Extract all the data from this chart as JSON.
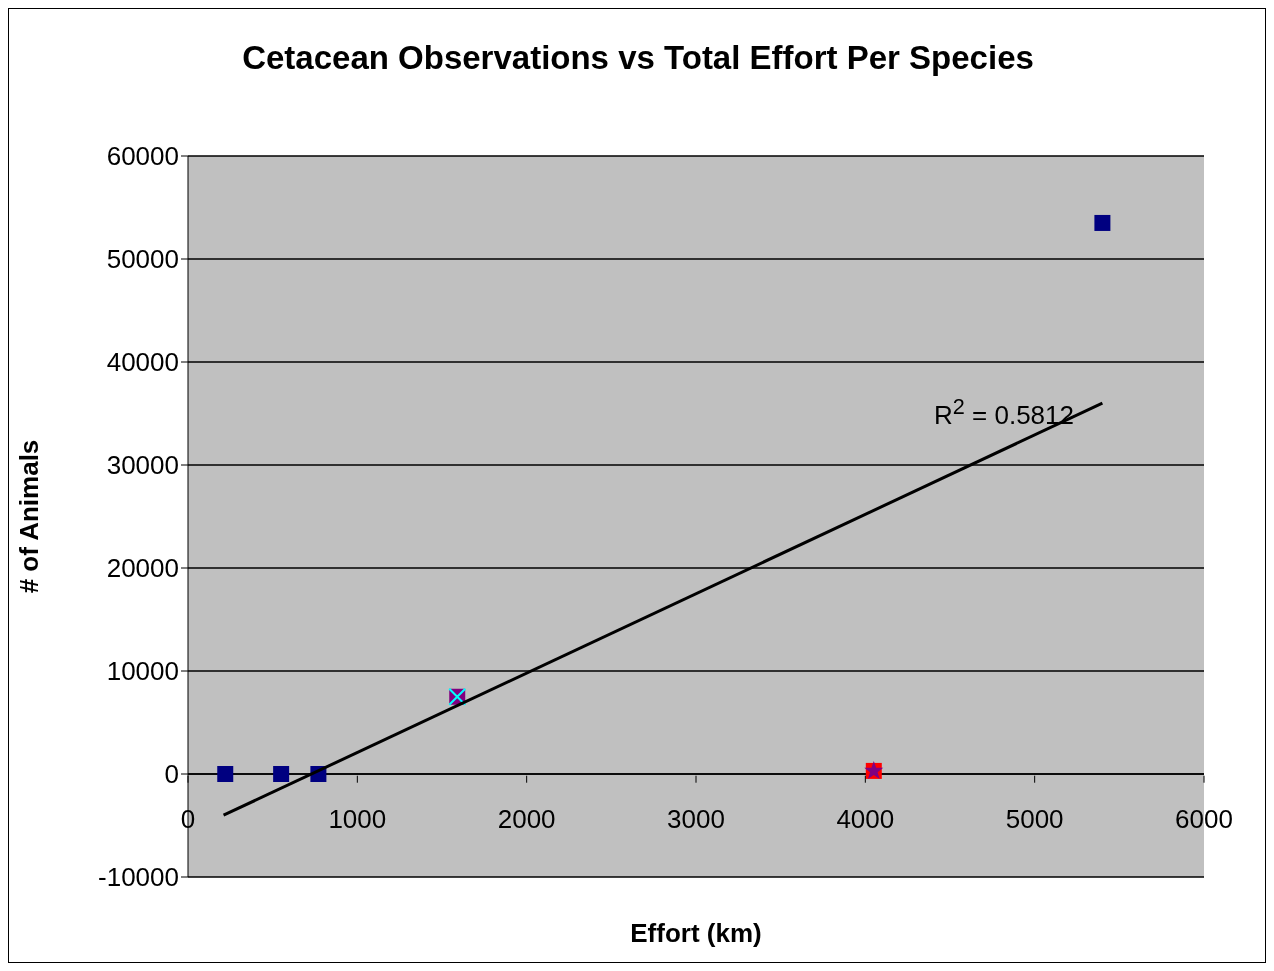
{
  "chart_data": {
    "type": "scatter",
    "title": "Cetacean Observations vs Total Effort Per Species",
    "xlabel": "Effort (km)",
    "ylabel": "# of Animals",
    "xlim": [
      0,
      6000
    ],
    "xticks": [
      0,
      1000,
      2000,
      3000,
      4000,
      5000,
      6000
    ],
    "ylim": [
      -10000,
      60000
    ],
    "yticks": [
      -10000,
      0,
      10000,
      20000,
      30000,
      40000,
      50000,
      60000
    ],
    "grid": "y",
    "series": [
      {
        "color": "#000080",
        "marker": "square",
        "x": [
          220,
          550,
          770,
          5400
        ],
        "values": [
          0,
          0,
          0,
          53500
        ]
      },
      {
        "color": "#800080",
        "marker": "square",
        "x": [
          1590
        ],
        "values": [
          7500
        ]
      },
      {
        "color": "#00ffff",
        "marker": "cross",
        "x": [
          1590
        ],
        "values": [
          7500
        ]
      },
      {
        "color": "#ff0000",
        "marker": "square",
        "x": [
          4050
        ],
        "values": [
          300
        ]
      },
      {
        "color": "#800080",
        "marker": "star",
        "x": [
          4050
        ],
        "values": [
          300
        ]
      },
      {
        "type": "line",
        "color": "#000000",
        "marker": "none",
        "x": [
          210,
          5400
        ],
        "values": [
          -4000,
          36000
        ]
      }
    ],
    "annotations": [
      "R$^{2}$ = 0.5812"
    ]
  }
}
